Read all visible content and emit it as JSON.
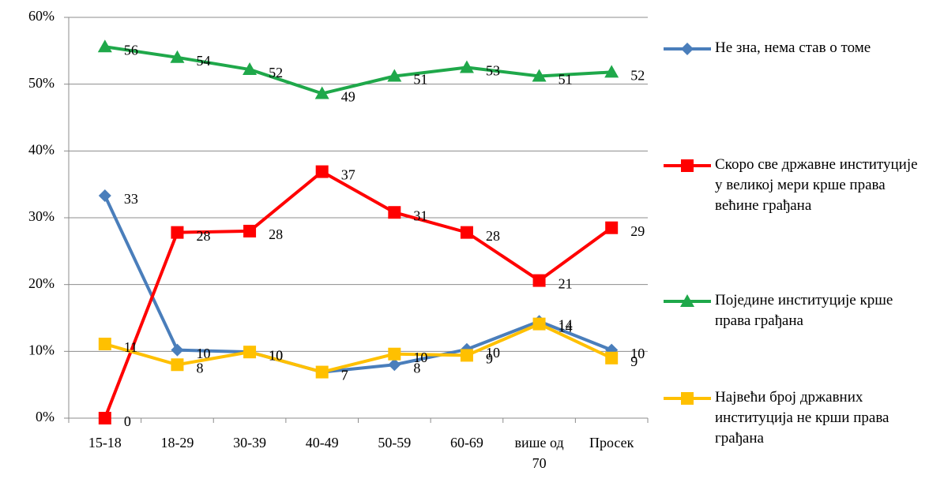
{
  "chart_data": {
    "type": "line",
    "categories": [
      "15-18",
      "18-29",
      "30-39",
      "40-49",
      "50-59",
      "60-69",
      "више од 70",
      "Просек"
    ],
    "ylim": [
      0,
      60
    ],
    "yticks": [
      {
        "value": 0,
        "label": "0%"
      },
      {
        "value": 10,
        "label": "10%"
      },
      {
        "value": 20,
        "label": "20%"
      },
      {
        "value": 30,
        "label": "30%"
      },
      {
        "value": 40,
        "label": "40%"
      },
      {
        "value": 50,
        "label": "50%"
      },
      {
        "value": 60,
        "label": "60%"
      }
    ],
    "grid": true,
    "legend": "right",
    "series": [
      {
        "name": "Не зна, нема став о томе",
        "color": "#4a7ebb",
        "marker": "diamond",
        "values": [
          33.3,
          10.2,
          9.9,
          6.9,
          8,
          10.3,
          14.5,
          10.2
        ],
        "value_labels": [
          "33",
          "10",
          "10",
          "7",
          "8",
          "10",
          "14",
          "10"
        ]
      },
      {
        "name": "Скоро све државне институције у великој мери крше права већине грађана",
        "color": "#ff0000",
        "marker": "square",
        "values": [
          0,
          27.8,
          28,
          36.9,
          30.8,
          27.8,
          20.6,
          28.5
        ],
        "value_labels": [
          "0",
          "28",
          "28",
          "37",
          "31",
          "28",
          "21",
          "29"
        ]
      },
      {
        "name": "Поједине институције крше права грађана",
        "color": "#1fa84a",
        "marker": "triangle",
        "values": [
          55.6,
          54,
          52.2,
          48.6,
          51.2,
          52.5,
          51.2,
          51.8
        ],
        "value_labels": [
          "56",
          "54",
          "52",
          "49",
          "51",
          "53",
          "51",
          "52"
        ]
      },
      {
        "name": "Највећи број државних институција не крши права грађана",
        "color": "#ffc000",
        "marker": "square",
        "values": [
          11.1,
          8,
          9.9,
          6.9,
          9.6,
          9.4,
          14.1,
          9
        ],
        "value_labels": [
          "11",
          "8",
          "10",
          "7",
          "10",
          "9",
          "14",
          "9"
        ]
      }
    ]
  }
}
